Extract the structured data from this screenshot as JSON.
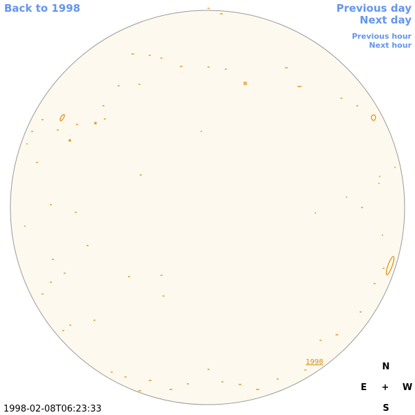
{
  "nav": {
    "back": "Back to 1998",
    "previous_day": "Previous day",
    "next_day": "Next day",
    "previous_hour": "Previous hour",
    "next_hour": "Next hour"
  },
  "timestamp": "1998-02-08T06:23:33",
  "image_label": "1998",
  "compass": {
    "north": "N",
    "east": "E",
    "center": "+",
    "west": "W",
    "south": "S"
  }
}
